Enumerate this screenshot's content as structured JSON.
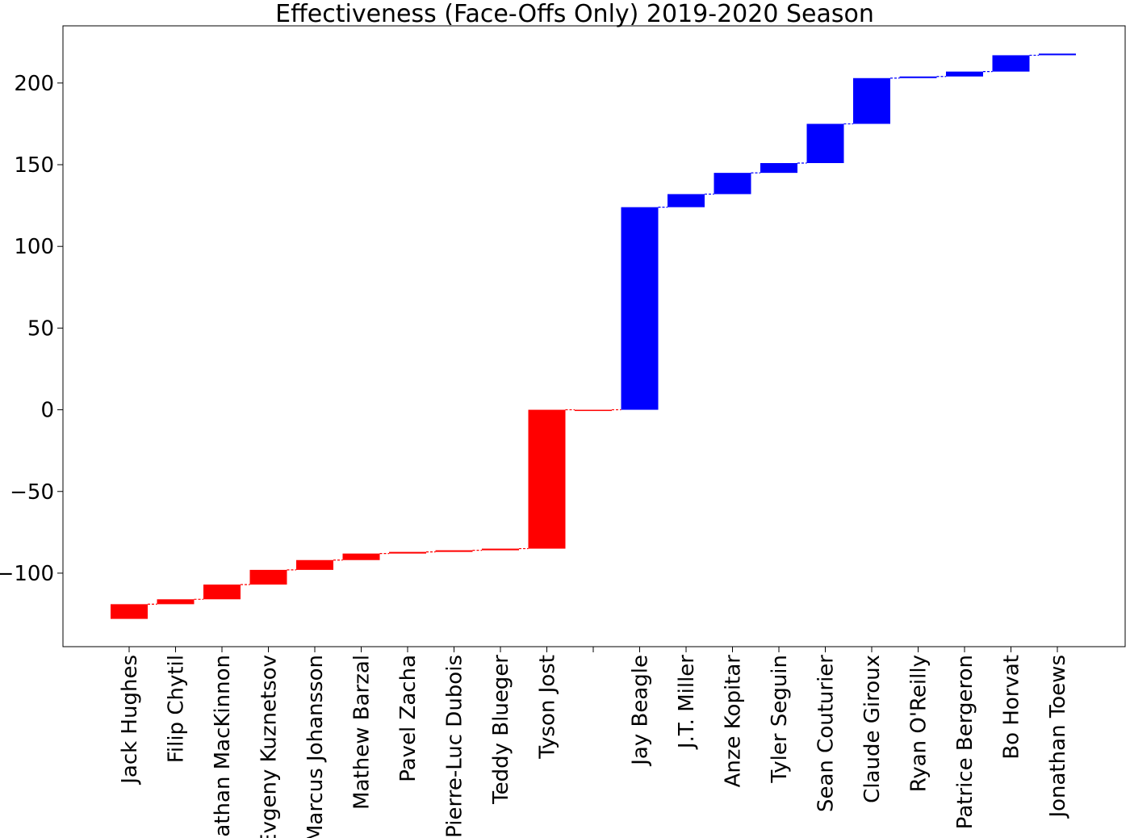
{
  "chart_data": {
    "type": "bar",
    "variant": "waterfall",
    "title": "Effectiveness (Face-Offs Only) 2019-2020 Season",
    "xlabel": "",
    "ylabel": "",
    "ylim": [
      -145,
      235
    ],
    "yticks": [
      -100,
      -50,
      0,
      50,
      100,
      150,
      200
    ],
    "ytick_labels": [
      "−100",
      "−50",
      "0",
      "50",
      "100",
      "150",
      "200"
    ],
    "grid": false,
    "legend": "none",
    "colors": {
      "negative": "#ff0000",
      "positive": "#0000ff",
      "connector_negative": "#ff0000",
      "connector_positive": "#0000ff"
    },
    "categories": [
      "Jack Hughes",
      "Filip Chytil",
      "Nathan MacKinnon",
      "Evgeny Kuznetsov",
      "Marcus Johansson",
      "Mathew Barzal",
      "Pavel Zacha",
      "Pierre-Luc Dubois",
      "Teddy Blueger",
      "Tyson Jost",
      "",
      "Jay Beagle",
      "J.T. Miller",
      "Anze Kopitar",
      "Tyler Seguin",
      "Sean Couturier",
      "Claude Giroux",
      "Ryan O'Reilly",
      "Patrice Bergeron",
      "Bo Horvat",
      "Jonathan Toews"
    ],
    "bars": [
      {
        "start": -128,
        "end": -119
      },
      {
        "start": -119,
        "end": -116
      },
      {
        "start": -116,
        "end": -107
      },
      {
        "start": -107,
        "end": -98
      },
      {
        "start": -98,
        "end": -92
      },
      {
        "start": -92,
        "end": -88
      },
      {
        "start": -88,
        "end": -87
      },
      {
        "start": -87,
        "end": -86
      },
      {
        "start": -86,
        "end": -85
      },
      {
        "start": -85,
        "end": 0
      },
      {
        "start": 0,
        "end": 0
      },
      {
        "start": 0,
        "end": 124
      },
      {
        "start": 124,
        "end": 132
      },
      {
        "start": 132,
        "end": 145
      },
      {
        "start": 145,
        "end": 151
      },
      {
        "start": 151,
        "end": 175
      },
      {
        "start": 175,
        "end": 203
      },
      {
        "start": 203,
        "end": 204
      },
      {
        "start": 204,
        "end": 207
      },
      {
        "start": 207,
        "end": 217
      },
      {
        "start": 217,
        "end": 218
      }
    ]
  }
}
